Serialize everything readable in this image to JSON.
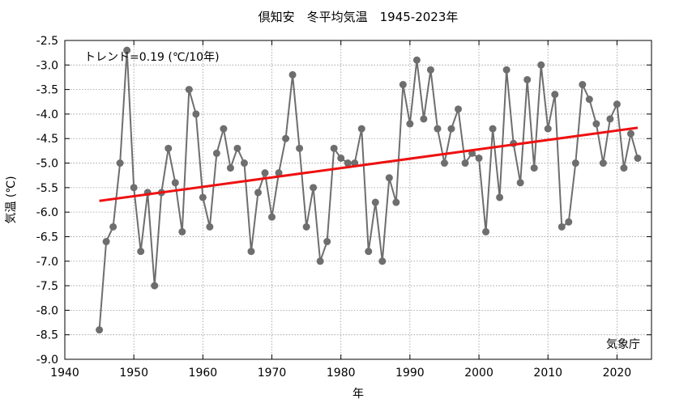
{
  "chart_data": {
    "type": "line",
    "title": "倶知安　冬平均気温　1945-2023年",
    "xlabel": "年",
    "ylabel": "気温 (℃)",
    "xlim": [
      1940,
      2025
    ],
    "ylim": [
      -9.0,
      -2.5
    ],
    "x_ticks": [
      1940,
      1950,
      1960,
      1970,
      1980,
      1990,
      2000,
      2010,
      2020
    ],
    "y_ticks": [
      -2.5,
      -3.0,
      -3.5,
      -4.0,
      -4.5,
      -5.0,
      -5.5,
      -6.0,
      -6.5,
      -7.0,
      -7.5,
      -8.0,
      -8.5,
      -9.0
    ],
    "grid": true,
    "trend_text": "トレンド=0.19 (℃/10年)",
    "source_text": "気象庁",
    "colors": {
      "series": "#6e6e6e",
      "trend": "#ee1111",
      "grid": "#999999"
    },
    "series": [
      {
        "values_x": [
          1945,
          1946,
          1947,
          1948,
          1949,
          1950,
          1951,
          1952,
          1953,
          1954,
          1955,
          1956,
          1957,
          1958,
          1959,
          1960,
          1961,
          1962,
          1963,
          1964,
          1965,
          1966,
          1967,
          1968,
          1969,
          1970,
          1971,
          1972,
          1973,
          1974,
          1975,
          1976,
          1977,
          1978,
          1979,
          1980,
          1981,
          1982,
          1983,
          1984,
          1985,
          1986,
          1987,
          1988,
          1989,
          1990,
          1991,
          1992,
          1993,
          1994,
          1995,
          1996,
          1997,
          1998,
          1999,
          2000,
          2001,
          2002,
          2003,
          2004,
          2005,
          2006,
          2007,
          2008,
          2009,
          2010,
          2011,
          2012,
          2013,
          2014,
          2015,
          2016,
          2017,
          2018,
          2019,
          2020,
          2021,
          2022,
          2023
        ],
        "values_y": [
          -8.4,
          -6.6,
          -6.3,
          -5.0,
          -2.7,
          -5.5,
          -6.8,
          -5.6,
          -7.5,
          -5.6,
          -4.7,
          -5.4,
          -6.4,
          -3.5,
          -4.0,
          -5.7,
          -6.3,
          -4.8,
          -4.3,
          -5.1,
          -4.7,
          -5.0,
          -6.8,
          -5.6,
          -5.2,
          -6.1,
          -5.2,
          -4.5,
          -3.2,
          -4.7,
          -6.3,
          -5.5,
          -7.0,
          -6.6,
          -4.7,
          -4.9,
          -5.0,
          -5.0,
          -4.3,
          -6.8,
          -5.8,
          -7.0,
          -5.3,
          -5.8,
          -3.4,
          -4.2,
          -2.9,
          -4.1,
          -3.1,
          -4.3,
          -5.0,
          -4.3,
          -3.9,
          -5.0,
          -4.8,
          -4.9,
          -6.4,
          -4.3,
          -5.7,
          -3.1,
          -4.6,
          -5.4,
          -3.3,
          -5.1,
          -3.0,
          -4.3,
          -3.6,
          -6.3,
          -6.2,
          -5.0,
          -3.4,
          -3.7,
          -4.2,
          -5.0,
          -4.1,
          -3.8,
          -5.1,
          -4.4,
          -4.9
        ]
      },
      {
        "trend_x": [
          1945,
          2023
        ],
        "trend_y": [
          -5.77,
          -4.28
        ]
      }
    ]
  }
}
